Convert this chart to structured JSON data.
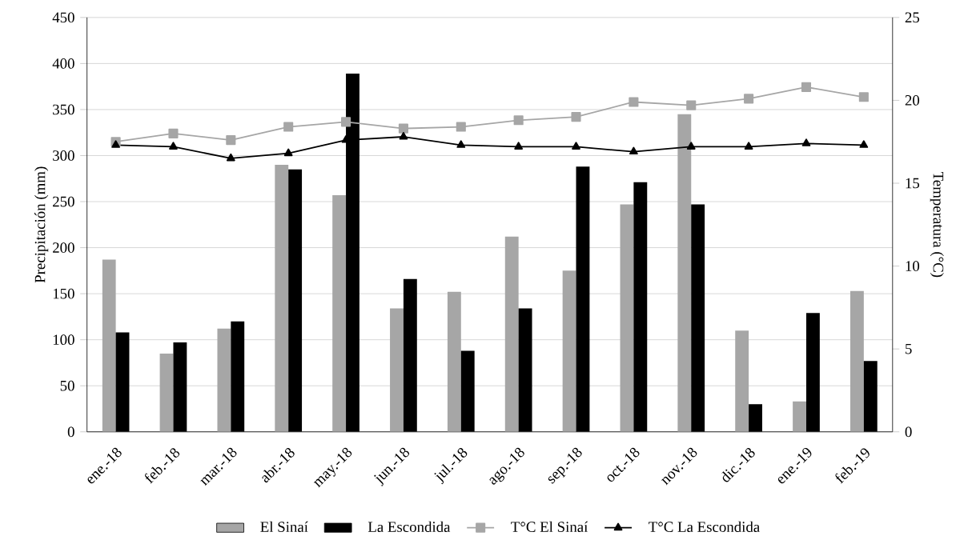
{
  "chart_data": {
    "type": "bar",
    "categories": [
      "ene.-18",
      "feb.-18",
      "mar.-18",
      "abr.-18",
      "may.-18",
      "jun.-18",
      "jul.-18",
      "ago.-18",
      "sep.-18",
      "oct.-18",
      "nov.-18",
      "dic.-18",
      "ene.-19",
      "feb.-19"
    ],
    "ylabel": "Precipitación (mm)",
    "y2label": "Temperatura (°C)",
    "ylim": [
      0,
      450
    ],
    "yticks": [
      0,
      50,
      100,
      150,
      200,
      250,
      300,
      350,
      400,
      450
    ],
    "y2lim": [
      0,
      25
    ],
    "y2ticks": [
      0,
      5,
      10,
      15,
      20,
      25
    ],
    "grid": "y",
    "legend": "bottom",
    "series": [
      {
        "name": "El Sinaí",
        "color": "#a6a6a6",
        "values": [
          187,
          85,
          112,
          290,
          257,
          134,
          152,
          212,
          175,
          247,
          345,
          110,
          33,
          153
        ]
      },
      {
        "name": "La Escondida",
        "color": "#000000",
        "values": [
          108,
          97,
          120,
          285,
          389,
          166,
          88,
          134,
          288,
          271,
          247,
          30,
          129,
          77
        ]
      },
      {
        "name": "T°C El Sinaí",
        "type": "line",
        "axis": "y2",
        "marker": "square",
        "line_style": "solid",
        "color": "#a6a6a6",
        "values": [
          17.5,
          18.0,
          17.6,
          18.4,
          18.7,
          18.3,
          18.4,
          18.8,
          19.0,
          19.9,
          19.7,
          20.1,
          20.8,
          20.2
        ]
      },
      {
        "name": "T°C La Escondida",
        "type": "line",
        "axis": "y2",
        "marker": "triangle",
        "line_style": "solid",
        "color": "#000000",
        "values": [
          17.3,
          17.2,
          16.5,
          16.8,
          17.6,
          17.8,
          17.3,
          17.2,
          17.2,
          16.9,
          17.2,
          17.2,
          17.4,
          17.3
        ]
      }
    ]
  }
}
